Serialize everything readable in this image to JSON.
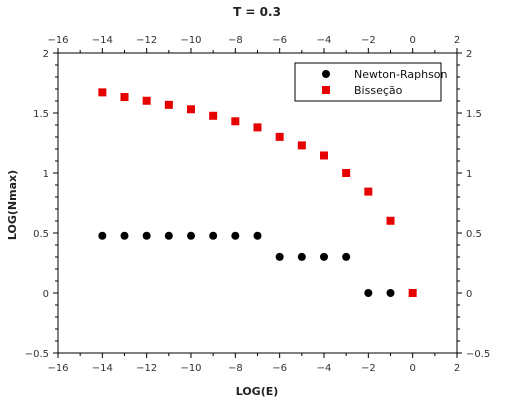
{
  "chart_data": {
    "type": "scatter",
    "title": "T = 0.3",
    "xlabel": "LOG(E)",
    "ylabel": "LOG(Nmax)",
    "xlim": [
      -16,
      2
    ],
    "ylim": [
      -0.5,
      2
    ],
    "x_ticks": [
      -16,
      -14,
      -12,
      -10,
      -8,
      -6,
      -4,
      -2,
      0,
      2
    ],
    "x_tick_labels": [
      "−16",
      "−14",
      "−12",
      "−10",
      "−8",
      "−6",
      "−4",
      "−2",
      "0",
      "2"
    ],
    "y_ticks": [
      -0.5,
      0,
      0.5,
      1,
      1.5,
      2
    ],
    "y_tick_labels": [
      "−0.5",
      "0",
      "0.5",
      "1",
      "1.5",
      "2"
    ],
    "grid": false,
    "legend_position": "top-right",
    "series": [
      {
        "name": "Newton-Raphson",
        "marker": "circle",
        "color": "#000000",
        "x": [
          -14,
          -13,
          -12,
          -11,
          -10,
          -9,
          -8,
          -7,
          -6,
          -5,
          -4,
          -3,
          -2,
          -1
        ],
        "y": [
          0.477,
          0.477,
          0.477,
          0.477,
          0.477,
          0.477,
          0.477,
          0.477,
          0.301,
          0.301,
          0.301,
          0.301,
          0,
          0
        ]
      },
      {
        "name": "Bisseção",
        "marker": "square",
        "color": "#e60000",
        "x": [
          -14,
          -13,
          -12,
          -11,
          -10,
          -9,
          -8,
          -7,
          -6,
          -5,
          -4,
          -3,
          -2,
          -1,
          0
        ],
        "y": [
          1.672,
          1.633,
          1.602,
          1.568,
          1.531,
          1.477,
          1.431,
          1.38,
          1.301,
          1.23,
          1.146,
          1.0,
          0.845,
          0.602,
          0
        ]
      }
    ]
  }
}
